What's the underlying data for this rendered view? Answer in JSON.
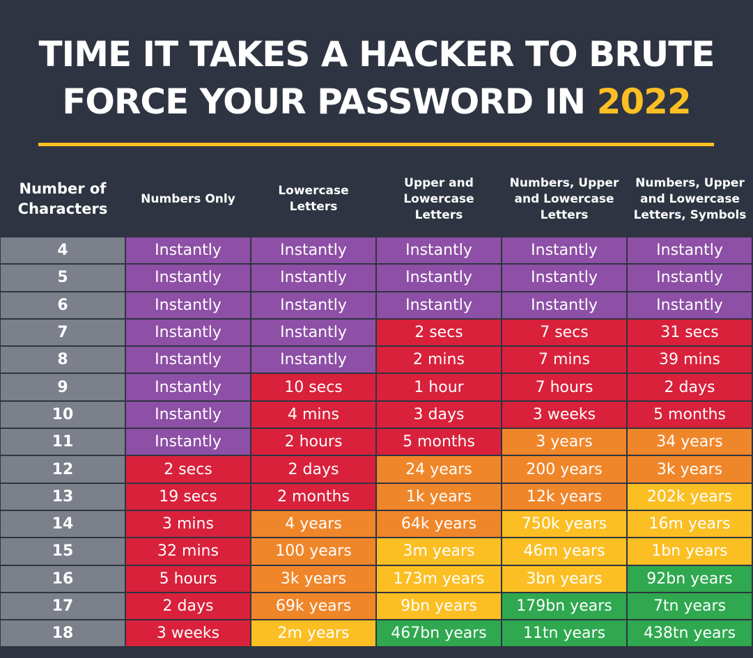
{
  "header": {
    "title_line1": "TIME IT TAKES A HACKER TO BRUTE",
    "title_line2": "FORCE YOUR PASSWORD IN ",
    "year": "2022"
  },
  "table": {
    "columns": [
      "Number of Characters",
      "Numbers Only",
      "Lowercase Letters",
      "Upper and Lowercase Letters",
      "Numbers, Upper and Lowercase Letters",
      "Numbers, Upper and Lowercase Letters, Symbols"
    ],
    "rows": [
      {
        "chars": "4",
        "cells": [
          "Instantly",
          "Instantly",
          "Instantly",
          "Instantly",
          "Instantly"
        ],
        "colors": [
          "#8e4fa6",
          "#8e4fa6",
          "#8e4fa6",
          "#8e4fa6",
          "#8e4fa6"
        ]
      },
      {
        "chars": "5",
        "cells": [
          "Instantly",
          "Instantly",
          "Instantly",
          "Instantly",
          "Instantly"
        ],
        "colors": [
          "#8e4fa6",
          "#8e4fa6",
          "#8e4fa6",
          "#8e4fa6",
          "#8e4fa6"
        ]
      },
      {
        "chars": "6",
        "cells": [
          "Instantly",
          "Instantly",
          "Instantly",
          "Instantly",
          "Instantly"
        ],
        "colors": [
          "#8e4fa6",
          "#8e4fa6",
          "#8e4fa6",
          "#8e4fa6",
          "#8e4fa6"
        ]
      },
      {
        "chars": "7",
        "cells": [
          "Instantly",
          "Instantly",
          "2 secs",
          "7 secs",
          "31 secs"
        ],
        "colors": [
          "#8e4fa6",
          "#8e4fa6",
          "#d9213b",
          "#d9213b",
          "#d9213b"
        ]
      },
      {
        "chars": "8",
        "cells": [
          "Instantly",
          "Instantly",
          "2 mins",
          "7 mins",
          "39 mins"
        ],
        "colors": [
          "#8e4fa6",
          "#8e4fa6",
          "#d9213b",
          "#d9213b",
          "#d9213b"
        ]
      },
      {
        "chars": "9",
        "cells": [
          "Instantly",
          "10 secs",
          "1 hour",
          "7 hours",
          "2 days"
        ],
        "colors": [
          "#8e4fa6",
          "#d9213b",
          "#d9213b",
          "#d9213b",
          "#d9213b"
        ]
      },
      {
        "chars": "10",
        "cells": [
          "Instantly",
          "4 mins",
          "3 days",
          "3 weeks",
          "5 months"
        ],
        "colors": [
          "#8e4fa6",
          "#d9213b",
          "#d9213b",
          "#d9213b",
          "#d9213b"
        ]
      },
      {
        "chars": "11",
        "cells": [
          "Instantly",
          "2 hours",
          "5 months",
          "3 years",
          "34 years"
        ],
        "colors": [
          "#8e4fa6",
          "#d9213b",
          "#d9213b",
          "#f0862a",
          "#f0862a"
        ]
      },
      {
        "chars": "12",
        "cells": [
          "2 secs",
          "2 days",
          "24 years",
          "200 years",
          "3k years"
        ],
        "colors": [
          "#d9213b",
          "#d9213b",
          "#f0862a",
          "#f0862a",
          "#f0862a"
        ]
      },
      {
        "chars": "13",
        "cells": [
          "19 secs",
          "2 months",
          "1k years",
          "12k years",
          "202k years"
        ],
        "colors": [
          "#d9213b",
          "#d9213b",
          "#f0862a",
          "#f0862a",
          "#fbbf24"
        ]
      },
      {
        "chars": "14",
        "cells": [
          "3 mins",
          "4 years",
          "64k years",
          "750k years",
          "16m years"
        ],
        "colors": [
          "#d9213b",
          "#f0862a",
          "#f0862a",
          "#fbbf24",
          "#fbbf24"
        ]
      },
      {
        "chars": "15",
        "cells": [
          "32 mins",
          "100 years",
          "3m years",
          "46m years",
          "1bn years"
        ],
        "colors": [
          "#d9213b",
          "#f0862a",
          "#fbbf24",
          "#fbbf24",
          "#fbbf24"
        ]
      },
      {
        "chars": "16",
        "cells": [
          "5 hours",
          "3k years",
          "173m years",
          "3bn years",
          "92bn years"
        ],
        "colors": [
          "#d9213b",
          "#f0862a",
          "#fbbf24",
          "#fbbf24",
          "#2fa84f"
        ]
      },
      {
        "chars": "17",
        "cells": [
          "2 days",
          "69k years",
          "9bn years",
          "179bn years",
          "7tn years"
        ],
        "colors": [
          "#d9213b",
          "#f0862a",
          "#fbbf24",
          "#2fa84f",
          "#2fa84f"
        ]
      },
      {
        "chars": "18",
        "cells": [
          "3 weeks",
          "2m years",
          "467bn years",
          "11tn years",
          "438tn years"
        ],
        "colors": [
          "#d9213b",
          "#fbbf24",
          "#2fa84f",
          "#2fa84f",
          "#2fa84f"
        ]
      }
    ]
  }
}
